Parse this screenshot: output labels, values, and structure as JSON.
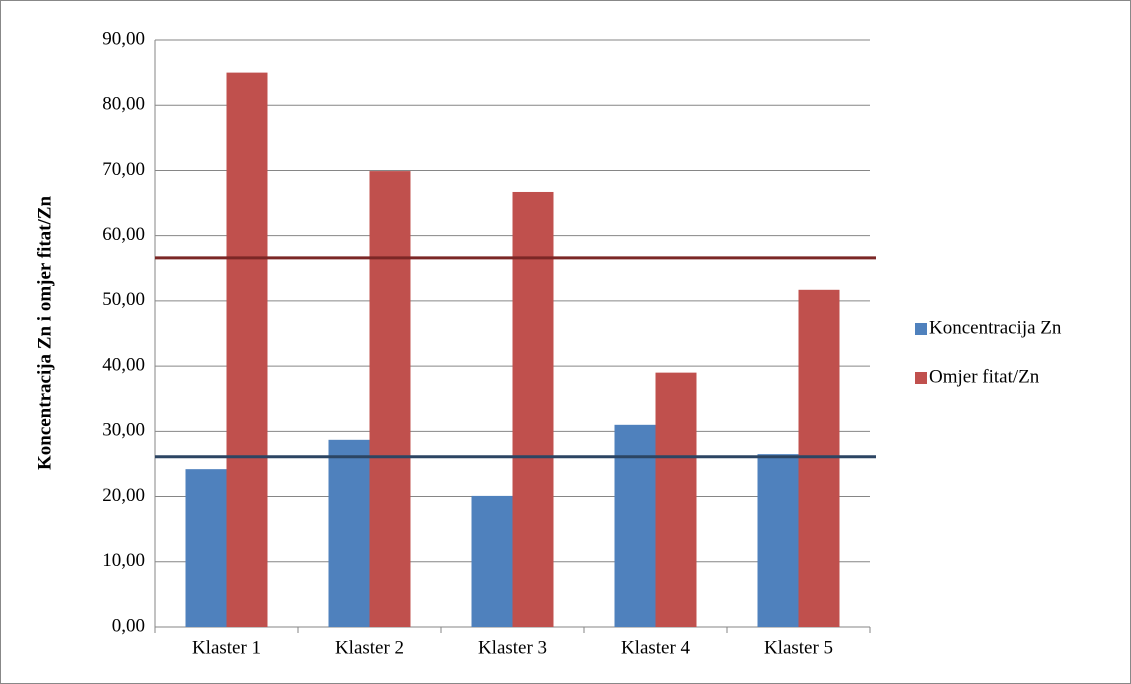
{
  "chart_data": {
    "type": "bar",
    "y_label": "Koncentracija Zn i omjer fitat/Zn",
    "categories": [
      "Klaster 1",
      "Klaster 2",
      "Klaster 3",
      "Klaster 4",
      "Klaster 5"
    ],
    "series": [
      {
        "name": "Koncentracija Zn",
        "color": "#4f81bd",
        "values": [
          24.2,
          28.7,
          20.1,
          31.0,
          26.5
        ]
      },
      {
        "name": "Omjer fitat/Zn",
        "color": "#c0504d",
        "values": [
          85.0,
          69.9,
          66.7,
          39.0,
          51.7
        ]
      }
    ],
    "reference_lines": [
      {
        "value": 56.6,
        "color": "#7b2726"
      },
      {
        "value": 26.1,
        "color": "#2c4563"
      }
    ],
    "ylim": [
      0,
      90
    ],
    "yticks": [
      {
        "value": 0,
        "label": "0,00"
      },
      {
        "value": 10,
        "label": "10,00"
      },
      {
        "value": 20,
        "label": "20,00"
      },
      {
        "value": 30,
        "label": "30,00"
      },
      {
        "value": 40,
        "label": "40,00"
      },
      {
        "value": 50,
        "label": "50,00"
      },
      {
        "value": 60,
        "label": "60,00"
      },
      {
        "value": 70,
        "label": "70,00"
      },
      {
        "value": 80,
        "label": "80,00"
      },
      {
        "value": 90,
        "label": "90,00"
      }
    ],
    "grid": true,
    "legend": "right"
  }
}
